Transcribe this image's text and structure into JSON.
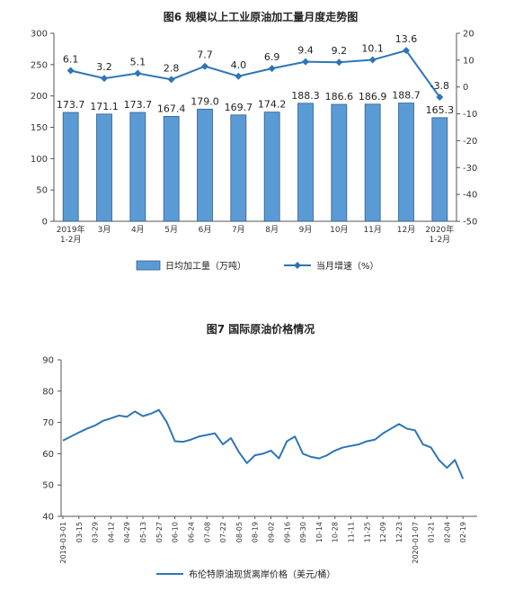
{
  "chart_data": [
    {
      "type": "bar+line",
      "title": "图6  规模以上工业原油加工量月度走势图",
      "categories": [
        [
          "2019年",
          "1-2月"
        ],
        [
          "3月"
        ],
        [
          "4月"
        ],
        [
          "5月"
        ],
        [
          "6月"
        ],
        [
          "7月"
        ],
        [
          "8月"
        ],
        [
          "9月"
        ],
        [
          "10月"
        ],
        [
          "11月"
        ],
        [
          "12月"
        ],
        [
          "2020年",
          "1-2月"
        ]
      ],
      "series": [
        {
          "name": "日均加工量（万吨）",
          "type": "bar",
          "axis": "left",
          "values": [
            173.7,
            171.1,
            173.7,
            167.4,
            179.0,
            169.7,
            174.2,
            188.3,
            186.6,
            186.9,
            188.7,
            165.3
          ],
          "labels": [
            "173.7",
            "171.1",
            "173.7",
            "167.4",
            "179.0",
            "169.7",
            "174.2",
            "188.3",
            "186.6",
            "186.9",
            "188.7",
            "165.3"
          ],
          "color": "#5b9bd5"
        },
        {
          "name": "当月增速（%）",
          "type": "line",
          "axis": "right",
          "values": [
            6.1,
            3.2,
            5.1,
            2.8,
            7.7,
            4.0,
            6.9,
            9.4,
            9.2,
            10.1,
            13.6,
            -3.8
          ],
          "labels": [
            "6.1",
            "3.2",
            "5.1",
            "2.8",
            "7.7",
            "4.0",
            "6.9",
            "9.4",
            "9.2",
            "10.1",
            "13.6",
            "-3.8"
          ],
          "color": "#2e75b6"
        }
      ],
      "y_left": {
        "min": 0,
        "max": 300,
        "ticks": [
          "0",
          "50",
          "100",
          "150",
          "200",
          "250",
          "300"
        ]
      },
      "y_right": {
        "min": -50,
        "max": 20,
        "ticks": [
          "-50",
          "-40",
          "-30",
          "-20",
          "-10",
          "0",
          "10",
          "20"
        ]
      },
      "legend": [
        "日均加工量（万吨）",
        "当月增速（%）"
      ],
      "legend_position": "bottom",
      "grid": false
    },
    {
      "type": "line",
      "title": "图7  国际原油价格情况",
      "x_ticks": [
        "2019-03-01",
        "03-15",
        "03-29",
        "04-12",
        "04-29",
        "05-13",
        "05-27",
        "06-10",
        "06-24",
        "07-08",
        "07-22",
        "08-05",
        "08-19",
        "09-02",
        "09-16",
        "09-30",
        "10-14",
        "10-28",
        "11-11",
        "11-25",
        "12-09",
        "12-23",
        "2020-01-07",
        "01-21",
        "02-04",
        "02-19"
      ],
      "y": {
        "min": 40,
        "max": 90,
        "ticks": [
          "40",
          "50",
          "60",
          "70",
          "80",
          "90"
        ]
      },
      "series": [
        {
          "name": "布伦特原油现货离岸价格（美元/桶）",
          "color": "#2e75b6",
          "x": [
            0,
            0.5,
            1,
            1.5,
            2,
            2.5,
            3,
            3.5,
            4,
            4.5,
            5,
            5.5,
            6,
            6.5,
            7,
            7.5,
            8,
            8.5,
            9,
            9.5,
            10,
            10.5,
            11,
            11.5,
            12,
            12.5,
            13,
            13.5,
            14,
            14.5,
            15,
            15.5,
            16,
            16.5,
            17,
            17.5,
            18,
            18.5,
            19,
            19.5,
            20,
            20.5,
            21,
            21.5,
            22,
            22.5,
            23,
            23.5,
            24,
            24.5,
            25
          ],
          "values": [
            64.2,
            65.5,
            66.8,
            68.0,
            69.0,
            70.5,
            71.3,
            72.2,
            71.8,
            73.5,
            72.0,
            72.8,
            74.0,
            70.0,
            64.0,
            63.8,
            64.5,
            65.5,
            66.0,
            66.5,
            63.0,
            65.0,
            60.5,
            57.0,
            59.5,
            60.0,
            61.0,
            58.5,
            64.0,
            65.5,
            60.0,
            59.0,
            58.5,
            59.5,
            61.0,
            62.0,
            62.5,
            63.0,
            64.0,
            64.5,
            66.5,
            68.0,
            69.5,
            68.0,
            67.5,
            63.0,
            62.0,
            58.0,
            55.5,
            58.0,
            52.0
          ],
          "line_width": 2
        }
      ],
      "legend": [
        "布伦特原油现货离岸价格（美元/桶）"
      ],
      "legend_position": "bottom",
      "grid": false
    }
  ]
}
